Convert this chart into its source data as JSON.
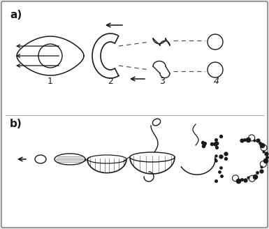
{
  "fig_width": 3.85,
  "fig_height": 3.28,
  "dpi": 100,
  "bg_color": "#e8e8e8",
  "panel_bg": "#ffffff",
  "border_color": "#888888",
  "label_a": "a)",
  "label_b": "b)",
  "stage_labels": [
    "1",
    "2",
    "3",
    "4"
  ],
  "line_color": "#1a1a1a",
  "arrow_color": "#111111",
  "dashed_color": "#555555"
}
